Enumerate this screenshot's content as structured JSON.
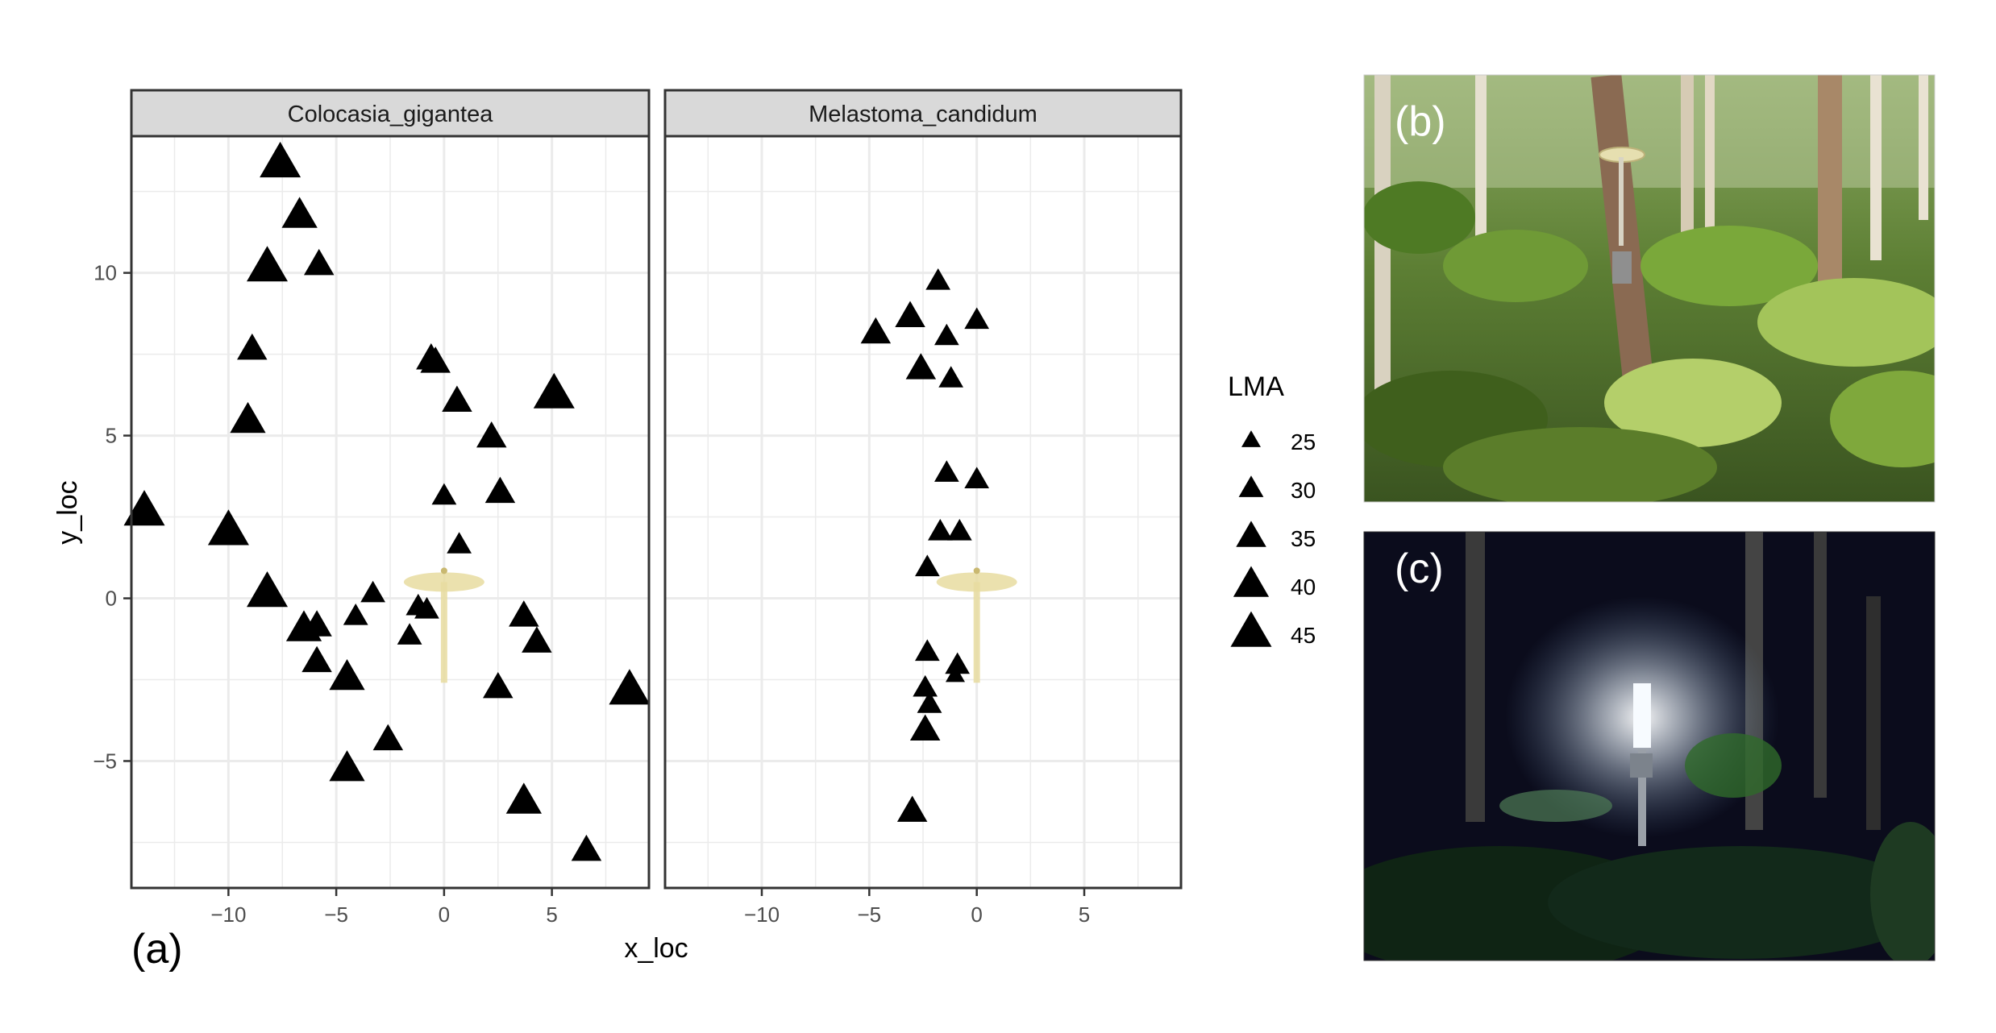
{
  "chart_data": {
    "type": "scatter",
    "xlabel": "x_loc",
    "ylabel": "y_loc",
    "xlim": [
      -14.5,
      9.5
    ],
    "ylim": [
      -8.9,
      14.2
    ],
    "x_ticks": [
      -10,
      -5,
      0,
      5
    ],
    "y_ticks": [
      -5,
      0,
      5,
      10
    ],
    "x_tick_labels": [
      "−10",
      "−5",
      "0",
      "5"
    ],
    "y_tick_labels": [
      "−5",
      "0",
      "5",
      "10"
    ],
    "grid": true,
    "facets": [
      {
        "label": "Colocasia_gigantea",
        "points": [
          {
            "x": -7.6,
            "y": 13.3,
            "lma": 45
          },
          {
            "x": -6.7,
            "y": 11.7,
            "lma": 40
          },
          {
            "x": -8.2,
            "y": 10.1,
            "lma": 45
          },
          {
            "x": -5.8,
            "y": 10.2,
            "lma": 35
          },
          {
            "x": -8.9,
            "y": 7.6,
            "lma": 35
          },
          {
            "x": -9.1,
            "y": 5.4,
            "lma": 40
          },
          {
            "x": -13.9,
            "y": 2.6,
            "lma": 45
          },
          {
            "x": -10.0,
            "y": 2.0,
            "lma": 45
          },
          {
            "x": -8.2,
            "y": 0.1,
            "lma": 45
          },
          {
            "x": -6.5,
            "y": -1.0,
            "lma": 40
          },
          {
            "x": -5.9,
            "y": -0.9,
            "lma": 35
          },
          {
            "x": -5.9,
            "y": -2.0,
            "lma": 35
          },
          {
            "x": -4.5,
            "y": -2.5,
            "lma": 40
          },
          {
            "x": -4.1,
            "y": -0.6,
            "lma": 30
          },
          {
            "x": -3.3,
            "y": 0.1,
            "lma": 30
          },
          {
            "x": -2.6,
            "y": -4.4,
            "lma": 35
          },
          {
            "x": -4.5,
            "y": -5.3,
            "lma": 40
          },
          {
            "x": -1.6,
            "y": -1.2,
            "lma": 30
          },
          {
            "x": -1.2,
            "y": -0.3,
            "lma": 30
          },
          {
            "x": -0.8,
            "y": -0.4,
            "lma": 30
          },
          {
            "x": -0.6,
            "y": 7.3,
            "lma": 35
          },
          {
            "x": -0.4,
            "y": 7.2,
            "lma": 35
          },
          {
            "x": 0.6,
            "y": 6.0,
            "lma": 35
          },
          {
            "x": 0.0,
            "y": 3.1,
            "lma": 30
          },
          {
            "x": 0.7,
            "y": 1.6,
            "lma": 30
          },
          {
            "x": 2.2,
            "y": 4.9,
            "lma": 35
          },
          {
            "x": 2.6,
            "y": 3.2,
            "lma": 35
          },
          {
            "x": 5.1,
            "y": 6.2,
            "lma": 45
          },
          {
            "x": 2.5,
            "y": -2.8,
            "lma": 35
          },
          {
            "x": 3.7,
            "y": -0.6,
            "lma": 35
          },
          {
            "x": 4.3,
            "y": -1.4,
            "lma": 35
          },
          {
            "x": 8.6,
            "y": -2.9,
            "lma": 45
          },
          {
            "x": 3.7,
            "y": -6.3,
            "lma": 40
          },
          {
            "x": 6.6,
            "y": -7.8,
            "lma": 35
          }
        ]
      },
      {
        "label": "Melastoma_candidum",
        "points": [
          {
            "x": -1.8,
            "y": 9.7,
            "lma": 30
          },
          {
            "x": -3.1,
            "y": 8.6,
            "lma": 35
          },
          {
            "x": -4.7,
            "y": 8.1,
            "lma": 35
          },
          {
            "x": -1.4,
            "y": 8.0,
            "lma": 30
          },
          {
            "x": 0.0,
            "y": 8.5,
            "lma": 30
          },
          {
            "x": -2.6,
            "y": 7.0,
            "lma": 35
          },
          {
            "x": -1.2,
            "y": 6.7,
            "lma": 30
          },
          {
            "x": -1.4,
            "y": 3.8,
            "lma": 30
          },
          {
            "x": 0.0,
            "y": 3.6,
            "lma": 30
          },
          {
            "x": -1.7,
            "y": 2.0,
            "lma": 30
          },
          {
            "x": -0.8,
            "y": 2.0,
            "lma": 30
          },
          {
            "x": -2.3,
            "y": 0.9,
            "lma": 30
          },
          {
            "x": -2.3,
            "y": -1.7,
            "lma": 30
          },
          {
            "x": -0.9,
            "y": -2.1,
            "lma": 30
          },
          {
            "x": -1.0,
            "y": -2.4,
            "lma": 25
          },
          {
            "x": -2.4,
            "y": -2.8,
            "lma": 30
          },
          {
            "x": -2.2,
            "y": -3.3,
            "lma": 30
          },
          {
            "x": -2.4,
            "y": -4.1,
            "lma": 35
          },
          {
            "x": -3.0,
            "y": -6.6,
            "lma": 35
          }
        ]
      }
    ],
    "size_legend": {
      "title": "LMA",
      "levels": [
        25,
        30,
        35,
        40,
        45
      ],
      "labels": [
        "25",
        "30",
        "35",
        "40",
        "45"
      ]
    },
    "light_trap_marker": {
      "x": 0.0,
      "y": 0.5
    },
    "panel_labels": {
      "a": "(a)",
      "b": "(b)",
      "c": "(c)"
    },
    "colors": {
      "marker": "#000000",
      "strip_fill": "#d9d9d9",
      "panel_border": "#333333",
      "grid": "#ebebeb",
      "lamp_shade": "#e8dca0",
      "day_photo_bg": "#4f6b2a",
      "night_photo_bg": "#0b0c1c"
    }
  }
}
